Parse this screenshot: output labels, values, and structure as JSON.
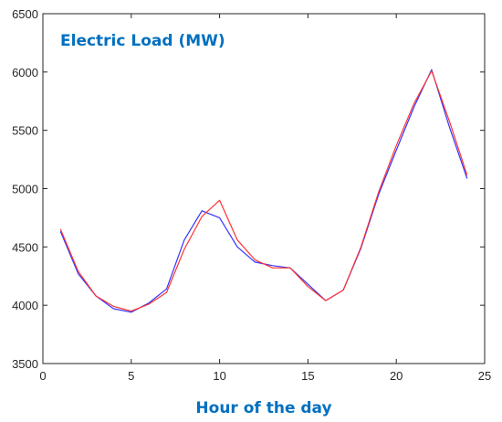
{
  "chart_data": {
    "type": "line",
    "title": "Electric Load (MW)",
    "xlabel": "Hour of the day",
    "ylabel": "",
    "xlim": [
      0,
      25
    ],
    "ylim": [
      3500,
      6500
    ],
    "xticks": [
      0,
      5,
      10,
      15,
      20,
      25
    ],
    "yticks": [
      3500,
      4000,
      4500,
      5000,
      5500,
      6000,
      6500
    ],
    "grid": false,
    "x": [
      1,
      2,
      3,
      4,
      5,
      6,
      7,
      8,
      9,
      10,
      11,
      12,
      13,
      14,
      15,
      16,
      17,
      18,
      19,
      20,
      21,
      22,
      23,
      24
    ],
    "series": [
      {
        "color": "#3333ff",
        "values": [
          4630,
          4270,
          4080,
          3970,
          3940,
          4020,
          4140,
          4560,
          4810,
          4750,
          4500,
          4370,
          4340,
          4320,
          4180,
          4040,
          4130,
          4490,
          4950,
          5330,
          5700,
          6020,
          5530,
          5090
        ]
      },
      {
        "color": "#ff3333",
        "values": [
          4650,
          4290,
          4080,
          3990,
          3950,
          4010,
          4110,
          4480,
          4760,
          4900,
          4560,
          4390,
          4320,
          4320,
          4160,
          4040,
          4130,
          4500,
          4970,
          5370,
          5730,
          6010,
          5580,
          5120
        ]
      }
    ]
  },
  "colors": {
    "title": "#0070c0",
    "axis": "#262626"
  }
}
